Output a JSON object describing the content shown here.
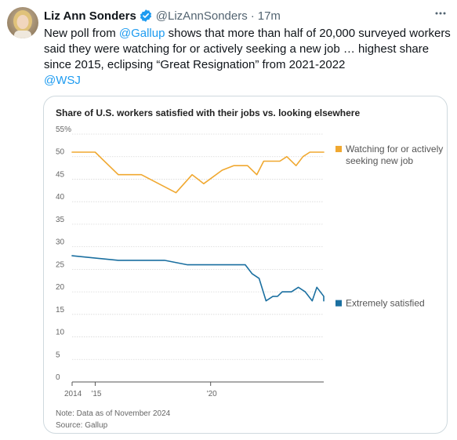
{
  "tweet": {
    "author_name": "Liz Ann Sonders",
    "handle": "@LizAnnSonders",
    "separator": "·",
    "time": "17m",
    "text": {
      "part1": "New poll from ",
      "mention1": "@Gallup",
      "part2": " shows that more than half of 20,000 surveyed workers said they were watching for or actively seeking a new job … highest share since 2015, eclipsing “Great Resignation” from 2021-2022",
      "mention2": "@WSJ"
    }
  },
  "icons": {
    "verified": "verified-badge-icon",
    "more": "more-options-icon",
    "avatar": "avatar-photo"
  },
  "colors": {
    "link": "#1d9bf0",
    "verified": "#1d9bf0",
    "series_watching": "#f0a830",
    "series_satisfied": "#1a6fa0"
  },
  "chart_data": {
    "type": "line",
    "title": "Share of U.S. workers satisfied with their jobs vs. looking elsewhere",
    "ylim": [
      0,
      55
    ],
    "yticks": [
      {
        "value": 0,
        "label": "0"
      },
      {
        "value": 5,
        "label": "5"
      },
      {
        "value": 10,
        "label": "10"
      },
      {
        "value": 15,
        "label": "15"
      },
      {
        "value": 20,
        "label": "20"
      },
      {
        "value": 25,
        "label": "25"
      },
      {
        "value": 30,
        "label": "30"
      },
      {
        "value": 35,
        "label": "35"
      },
      {
        "value": 40,
        "label": "40"
      },
      {
        "value": 45,
        "label": "45"
      },
      {
        "value": 50,
        "label": "50"
      },
      {
        "value": 55,
        "label": "55%"
      }
    ],
    "xlim": [
      2014,
      2024.9
    ],
    "xticks": [
      {
        "value": 2014,
        "label": "2014"
      },
      {
        "value": 2015,
        "label": "'15"
      },
      {
        "value": 2020,
        "label": "'20"
      }
    ],
    "grid": true,
    "series": [
      {
        "name": "Watching for or actively seeking new job",
        "label_lines": [
          "Watching for or actively",
          "seeking new job"
        ],
        "color": "#f0a830",
        "points": [
          [
            2014,
            51
          ],
          [
            2015,
            51
          ],
          [
            2016,
            46
          ],
          [
            2017,
            46
          ],
          [
            2018.5,
            42
          ],
          [
            2019.2,
            46
          ],
          [
            2019.7,
            44
          ],
          [
            2020.5,
            47
          ],
          [
            2021,
            48
          ],
          [
            2021.6,
            48
          ],
          [
            2022,
            46
          ],
          [
            2022.3,
            49
          ],
          [
            2023,
            49
          ],
          [
            2023.3,
            50
          ],
          [
            2023.7,
            48
          ],
          [
            2024,
            50
          ],
          [
            2024.3,
            51
          ],
          [
            2024.9,
            51
          ]
        ]
      },
      {
        "name": "Extremely satisfied",
        "label_lines": [
          "Extremely satisfied"
        ],
        "color": "#1a6fa0",
        "points": [
          [
            2014,
            28
          ],
          [
            2016,
            27
          ],
          [
            2018,
            27
          ],
          [
            2019,
            26
          ],
          [
            2021.5,
            26
          ],
          [
            2021.8,
            24
          ],
          [
            2022.1,
            23
          ],
          [
            2022.4,
            18
          ],
          [
            2022.7,
            19
          ],
          [
            2022.9,
            19
          ],
          [
            2023.1,
            20
          ],
          [
            2023.5,
            20
          ],
          [
            2023.8,
            21
          ],
          [
            2024.1,
            20
          ],
          [
            2024.4,
            18
          ],
          [
            2024.6,
            21
          ],
          [
            2024.9,
            19
          ],
          [
            2025.2,
            18
          ]
        ]
      }
    ],
    "note": "Note: Data as of November 2024",
    "source": "Source: Gallup"
  }
}
